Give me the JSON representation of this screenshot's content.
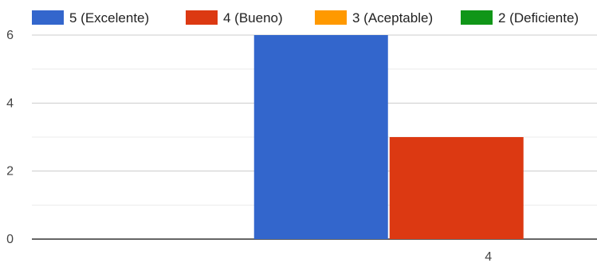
{
  "chart_data": {
    "type": "bar",
    "categories": [
      "",
      "4"
    ],
    "series": [
      {
        "name": "5 (Excelente)",
        "color": "#3366cc",
        "values": [
          null,
          6
        ]
      },
      {
        "name": "4 (Bueno)",
        "color": "#dc3912",
        "values": [
          null,
          3
        ]
      },
      {
        "name": "3 (Aceptable)",
        "color": "#ff9900",
        "values": [
          null,
          0
        ]
      },
      {
        "name": "2 (Deficiente)",
        "color": "#109618",
        "values": [
          null,
          0
        ]
      }
    ],
    "y_ticks": [
      "0",
      "2",
      "4",
      "6"
    ],
    "ylim": [
      0,
      6
    ],
    "grid": true,
    "legend_position": "top"
  }
}
